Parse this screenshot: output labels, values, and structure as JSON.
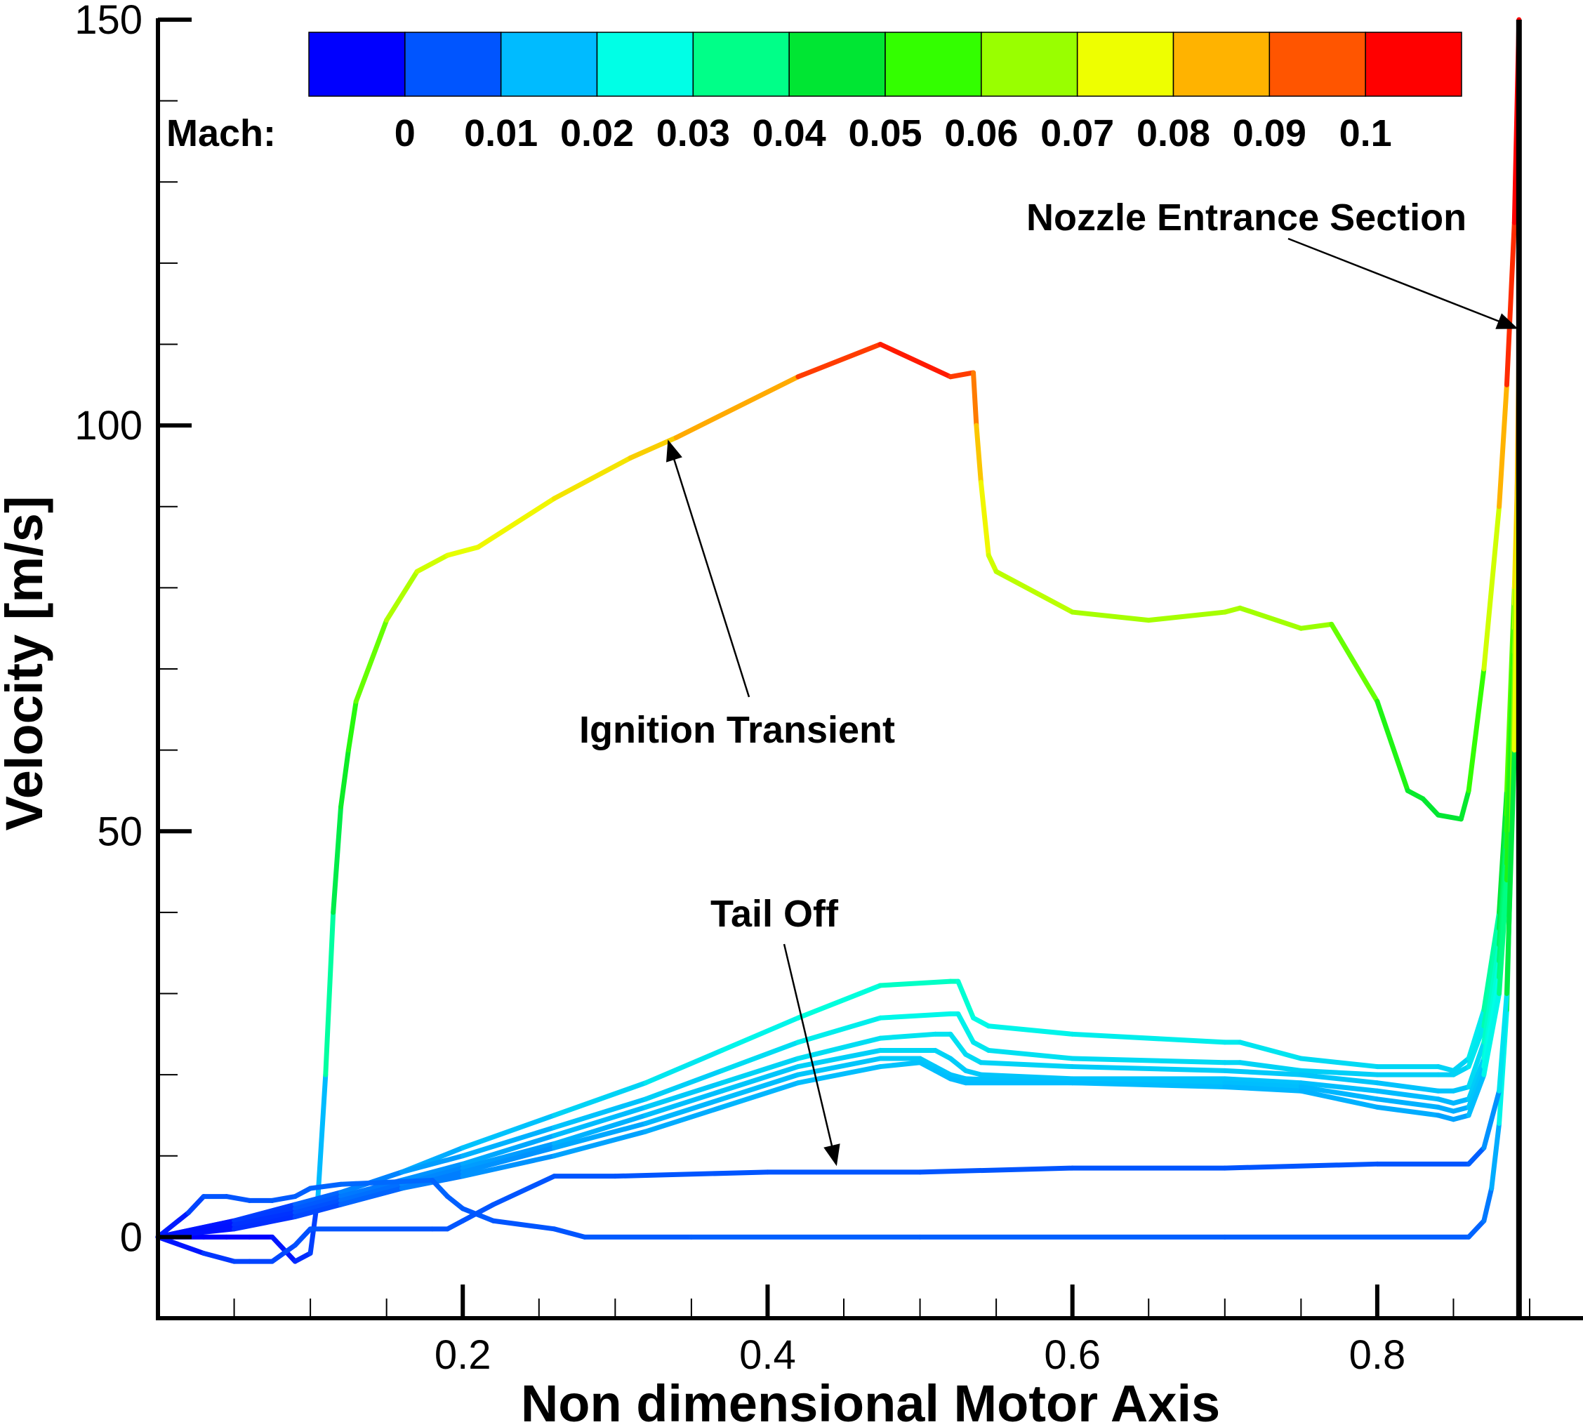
{
  "chart_data": {
    "type": "line",
    "title": "",
    "xlabel": "Non dimensional Motor Axis",
    "ylabel": "Velocity [m/s]",
    "xlim": [
      0.0,
      0.935
    ],
    "ylim": [
      -10,
      150
    ],
    "x_ticks": [
      0.2,
      0.4,
      0.6,
      0.8
    ],
    "x_tick_labels": [
      "0.2",
      "0.4",
      "0.6",
      "0.8"
    ],
    "y_ticks": [
      0,
      50,
      100,
      150
    ],
    "y_tick_labels": [
      "0",
      "50",
      "100",
      "150"
    ],
    "grid": false,
    "nozzle_x": 0.893,
    "color_variable": "Mach",
    "colorbar": {
      "title": "Mach:",
      "levels": [
        "0",
        "0.01",
        "0.02",
        "0.03",
        "0.04",
        "0.05",
        "0.06",
        "0.07",
        "0.08",
        "0.09",
        "0.1"
      ],
      "colors": [
        "#0000ff",
        "#0055ff",
        "#00bbff",
        "#00ffe6",
        "#00ff88",
        "#00e633",
        "#33ff00",
        "#99ff00",
        "#eeff00",
        "#ffb300",
        "#ff5500",
        "#ff0000"
      ]
    },
    "annotations": [
      {
        "text": "Nozzle Entrance Section",
        "target": [
          0.893,
          112
        ]
      },
      {
        "text": "Ignition Transient",
        "target": [
          0.335,
          98
        ]
      },
      {
        "text": "Tail Off",
        "target": [
          0.445,
          9
        ]
      }
    ],
    "series": [
      {
        "x": [
          0.0,
          0.03,
          0.045,
          0.06,
          0.075,
          0.09,
          0.1,
          0.105,
          0.11,
          0.115,
          0.12,
          0.125,
          0.13,
          0.15,
          0.17,
          0.19,
          0.21,
          0.26,
          0.31,
          0.34,
          0.42,
          0.474,
          0.52,
          0.535,
          0.537,
          0.54,
          0.545,
          0.55,
          0.6,
          0.65,
          0.7,
          0.71,
          0.75,
          0.77,
          0.8,
          0.82,
          0.83,
          0.84,
          0.855,
          0.86,
          0.87,
          0.88,
          0.885,
          0.89,
          0.893
        ],
        "y": [
          0,
          0,
          0,
          0,
          0,
          -3,
          -2,
          5,
          20,
          40,
          53,
          60,
          66,
          76,
          82,
          84,
          85,
          91,
          96,
          98.5,
          106,
          110,
          106,
          106.5,
          100,
          93,
          84,
          82,
          77,
          76,
          77,
          77.5,
          75,
          75.5,
          66,
          55,
          54,
          52,
          51.5,
          55,
          70,
          90,
          105,
          125,
          150
        ],
        "mach": [
          0.0,
          0.0,
          0.0,
          0.0,
          0.0,
          0.005,
          0.005,
          0.01,
          0.03,
          0.045,
          0.05,
          0.055,
          0.06,
          0.07,
          0.075,
          0.078,
          0.08,
          0.082,
          0.085,
          0.088,
          0.093,
          0.1,
          0.097,
          0.096,
          0.09,
          0.085,
          0.077,
          0.076,
          0.072,
          0.071,
          0.072,
          0.072,
          0.07,
          0.07,
          0.06,
          0.052,
          0.051,
          0.05,
          0.05,
          0.052,
          0.068,
          0.085,
          0.095,
          0.1,
          0.1
        ]
      },
      {
        "x": [
          0.0,
          0.05,
          0.09,
          0.12,
          0.16,
          0.2,
          0.26,
          0.32,
          0.37,
          0.42,
          0.474,
          0.52,
          0.525,
          0.535,
          0.545,
          0.6,
          0.7,
          0.71,
          0.75,
          0.8,
          0.84,
          0.85,
          0.86,
          0.87,
          0.88,
          0.885,
          0.89,
          0.893
        ],
        "y": [
          0,
          2,
          4,
          5.5,
          8,
          11,
          15,
          19,
          23,
          27,
          31,
          31.5,
          31.5,
          27,
          26,
          25,
          24,
          24,
          22,
          21,
          21,
          20.5,
          22,
          28,
          40,
          55,
          80,
          100
        ],
        "mach": [
          0.0,
          0.005,
          0.01,
          0.013,
          0.017,
          0.02,
          0.022,
          0.025,
          0.028,
          0.029,
          0.033,
          0.034,
          0.034,
          0.03,
          0.029,
          0.028,
          0.027,
          0.027,
          0.025,
          0.024,
          0.024,
          0.023,
          0.024,
          0.03,
          0.045,
          0.055,
          0.075,
          0.09
        ]
      },
      {
        "x": [
          0.0,
          0.05,
          0.09,
          0.12,
          0.16,
          0.2,
          0.26,
          0.32,
          0.37,
          0.42,
          0.474,
          0.52,
          0.525,
          0.535,
          0.545,
          0.6,
          0.7,
          0.71,
          0.75,
          0.8,
          0.84,
          0.85,
          0.86,
          0.87,
          0.88,
          0.885,
          0.89,
          0.893
        ],
        "y": [
          0,
          2,
          4,
          5.5,
          8,
          10,
          13.5,
          17,
          20.5,
          24,
          27,
          27.5,
          27.5,
          24,
          23,
          22,
          21.5,
          21.5,
          20.5,
          20,
          20,
          20,
          21,
          26,
          38,
          52,
          78,
          98
        ],
        "mach": [
          0.0,
          0.005,
          0.01,
          0.013,
          0.016,
          0.018,
          0.02,
          0.022,
          0.024,
          0.026,
          0.029,
          0.029,
          0.029,
          0.027,
          0.026,
          0.025,
          0.024,
          0.024,
          0.023,
          0.023,
          0.023,
          0.023,
          0.024,
          0.029,
          0.043,
          0.053,
          0.072,
          0.088
        ]
      },
      {
        "x": [
          0.0,
          0.05,
          0.09,
          0.12,
          0.16,
          0.2,
          0.26,
          0.32,
          0.37,
          0.42,
          0.474,
          0.51,
          0.52,
          0.53,
          0.54,
          0.6,
          0.7,
          0.75,
          0.8,
          0.84,
          0.85,
          0.86,
          0.87,
          0.88,
          0.885,
          0.89,
          0.893
        ],
        "y": [
          0,
          2,
          3.5,
          5,
          7,
          9,
          12.5,
          16,
          19,
          22,
          24.5,
          25,
          25,
          22.5,
          21.5,
          21,
          20.5,
          20,
          19,
          18,
          18,
          18.5,
          24,
          36,
          50,
          75,
          95
        ],
        "mach": [
          0.0,
          0.005,
          0.009,
          0.012,
          0.015,
          0.017,
          0.019,
          0.021,
          0.023,
          0.024,
          0.026,
          0.026,
          0.026,
          0.025,
          0.024,
          0.023,
          0.022,
          0.022,
          0.021,
          0.021,
          0.021,
          0.022,
          0.027,
          0.04,
          0.05,
          0.07,
          0.085
        ]
      },
      {
        "x": [
          0.0,
          0.05,
          0.09,
          0.12,
          0.16,
          0.2,
          0.26,
          0.32,
          0.37,
          0.42,
          0.474,
          0.51,
          0.52,
          0.53,
          0.54,
          0.6,
          0.7,
          0.75,
          0.8,
          0.84,
          0.85,
          0.86,
          0.87,
          0.88,
          0.885,
          0.89,
          0.893
        ],
        "y": [
          0,
          1.5,
          3,
          4.5,
          6.5,
          8.5,
          11.5,
          15,
          18,
          21,
          23,
          23,
          22,
          20.5,
          20,
          19.5,
          19.5,
          19,
          18,
          17,
          16.5,
          17,
          22,
          34,
          48,
          72,
          92
        ],
        "mach": [
          0.0,
          0.004,
          0.008,
          0.011,
          0.014,
          0.016,
          0.018,
          0.02,
          0.021,
          0.022,
          0.024,
          0.024,
          0.023,
          0.022,
          0.022,
          0.021,
          0.021,
          0.021,
          0.02,
          0.02,
          0.019,
          0.02,
          0.025,
          0.038,
          0.048,
          0.068,
          0.082
        ]
      },
      {
        "x": [
          0.0,
          0.05,
          0.09,
          0.12,
          0.16,
          0.2,
          0.26,
          0.32,
          0.37,
          0.42,
          0.474,
          0.5,
          0.51,
          0.52,
          0.53,
          0.6,
          0.7,
          0.75,
          0.8,
          0.84,
          0.85,
          0.86,
          0.87,
          0.88,
          0.885,
          0.89,
          0.893
        ],
        "y": [
          0,
          1.5,
          3,
          4,
          6,
          8,
          11,
          14,
          17,
          20,
          22,
          22,
          21,
          20,
          19.5,
          19,
          19,
          18.5,
          17,
          16,
          15.5,
          16,
          21,
          32,
          46,
          70,
          90
        ],
        "mach": [
          0.0,
          0.004,
          0.008,
          0.011,
          0.013,
          0.015,
          0.017,
          0.019,
          0.02,
          0.021,
          0.022,
          0.022,
          0.022,
          0.021,
          0.021,
          0.021,
          0.021,
          0.02,
          0.019,
          0.019,
          0.018,
          0.019,
          0.024,
          0.036,
          0.047,
          0.066,
          0.08
        ]
      },
      {
        "x": [
          0.0,
          0.05,
          0.09,
          0.12,
          0.16,
          0.2,
          0.26,
          0.32,
          0.37,
          0.42,
          0.474,
          0.5,
          0.51,
          0.52,
          0.53,
          0.6,
          0.7,
          0.75,
          0.8,
          0.84,
          0.85,
          0.86,
          0.87,
          0.88,
          0.885,
          0.89,
          0.893
        ],
        "y": [
          0,
          1,
          2.5,
          4,
          6,
          7.5,
          10,
          13,
          16,
          19,
          21,
          21.5,
          20.5,
          19.5,
          19,
          19,
          18.5,
          18,
          16,
          15,
          14.5,
          15,
          20,
          30,
          44,
          68,
          88
        ],
        "mach": [
          0.0,
          0.004,
          0.007,
          0.01,
          0.013,
          0.015,
          0.017,
          0.018,
          0.019,
          0.02,
          0.021,
          0.021,
          0.021,
          0.02,
          0.02,
          0.02,
          0.02,
          0.019,
          0.019,
          0.018,
          0.017,
          0.018,
          0.023,
          0.035,
          0.046,
          0.065,
          0.078
        ]
      },
      {
        "x": [
          0.0,
          0.02,
          0.03,
          0.045,
          0.06,
          0.075,
          0.09,
          0.1,
          0.12,
          0.18,
          0.19,
          0.2,
          0.22,
          0.26,
          0.28,
          0.35,
          0.5,
          0.7,
          0.86,
          0.87,
          0.875,
          0.88,
          0.885,
          0.888,
          0.891,
          0.893
        ],
        "y": [
          0,
          3,
          5,
          5,
          4.5,
          4.5,
          5,
          6,
          6.5,
          7,
          5,
          3.5,
          2,
          1,
          0,
          0,
          0,
          0,
          0,
          2,
          6,
          14,
          28,
          50,
          80,
          110
        ],
        "mach": [
          0.0,
          0.006,
          0.01,
          0.01,
          0.01,
          0.01,
          0.011,
          0.011,
          0.012,
          0.012,
          0.011,
          0.011,
          0.01,
          0.01,
          0.01,
          0.011,
          0.011,
          0.011,
          0.011,
          0.012,
          0.015,
          0.022,
          0.035,
          0.055,
          0.08,
          0.1
        ]
      },
      {
        "x": [
          0.0,
          0.03,
          0.05,
          0.06,
          0.075,
          0.09,
          0.1,
          0.18,
          0.19,
          0.2,
          0.22,
          0.26,
          0.3,
          0.4,
          0.5,
          0.6,
          0.7,
          0.8,
          0.86,
          0.87,
          0.88,
          0.885,
          0.89,
          0.893
        ],
        "y": [
          0,
          -2,
          -3,
          -3,
          -3,
          -1,
          1,
          1,
          1,
          2,
          4,
          7.5,
          7.5,
          8,
          8,
          8.5,
          8.5,
          9,
          9,
          11,
          18,
          30,
          60,
          100
        ],
        "mach": [
          0.0,
          0.005,
          0.008,
          0.008,
          0.008,
          0.009,
          0.01,
          0.01,
          0.01,
          0.01,
          0.01,
          0.01,
          0.01,
          0.01,
          0.01,
          0.01,
          0.01,
          0.01,
          0.01,
          0.012,
          0.02,
          0.032,
          0.065,
          0.095
        ]
      }
    ]
  }
}
